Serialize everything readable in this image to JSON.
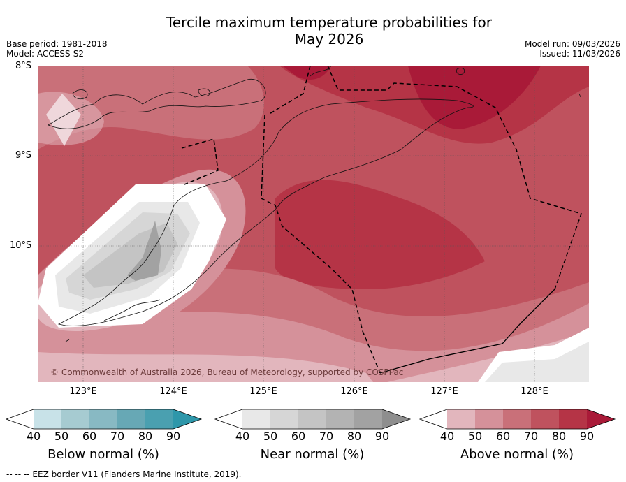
{
  "title_line1": "Tercile maximum temperature probabilities for",
  "title_line2": "May 2026",
  "base_period": "Base period: 1981-2018",
  "model": "Model: ACCESS-S2",
  "model_run": "Model run: 09/03/2026",
  "issued": "Issued: 11/03/2026",
  "lat_labels": [
    "8°S",
    "9°S",
    "10°S"
  ],
  "lon_labels": [
    "123°E",
    "124°E",
    "125°E",
    "126°E",
    "127°E",
    "128°E"
  ],
  "copyright": "© Commonwealth of Australia 2026, Bureau of Meteorology, supported by COSPPac",
  "legends": [
    {
      "label": "Below normal (%)",
      "ticks": [
        "40",
        "50",
        "60",
        "70",
        "80",
        "90"
      ],
      "colors": [
        "#ffffff",
        "#c8e2e8",
        "#a6cbd1",
        "#88b9c3",
        "#67a8b5",
        "#4aa0b0",
        "#2e97aa"
      ]
    },
    {
      "label": "Near normal (%)",
      "ticks": [
        "40",
        "50",
        "60",
        "70",
        "80",
        "90"
      ],
      "colors": [
        "#ffffff",
        "#e8e8e8",
        "#d6d6d6",
        "#c4c4c4",
        "#b3b3b3",
        "#a2a2a2",
        "#8e8e8e"
      ]
    },
    {
      "label": "Above normal (%)",
      "ticks": [
        "40",
        "50",
        "60",
        "70",
        "80",
        "90"
      ],
      "colors": [
        "#ffffff",
        "#e2b6bd",
        "#d5919a",
        "#c97079",
        "#bf525e",
        "#b53446",
        "#a91a38"
      ]
    }
  ],
  "footer": "-- -- -- EEZ border V11 (Flanders Marine Institute, 2019)."
}
